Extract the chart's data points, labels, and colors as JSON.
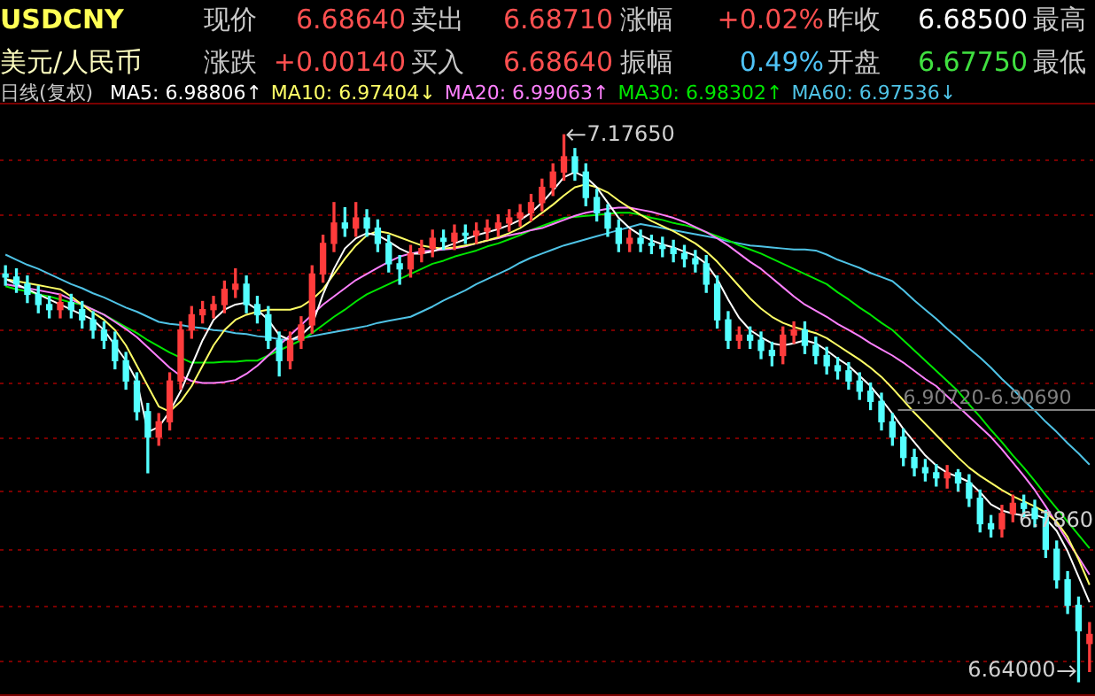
{
  "chart_data": {
    "type": "candlestick",
    "title": "USDCNY",
    "subtitle": "美元/人民币",
    "categories": [
      null,
      null,
      null,
      null,
      null,
      null,
      null,
      null,
      null,
      null,
      null,
      null,
      null,
      null,
      null,
      null,
      null,
      null,
      null,
      null,
      null,
      null,
      null,
      null,
      null,
      null,
      null,
      null,
      null,
      null,
      null,
      null,
      null,
      null,
      null,
      null,
      null,
      null,
      null,
      null,
      null,
      null,
      null,
      null,
      null,
      null,
      null,
      null,
      null,
      null,
      null,
      null,
      null,
      null,
      null,
      null,
      null,
      null,
      null,
      null,
      null,
      null,
      null,
      null,
      null,
      null,
      null,
      null,
      null,
      null,
      null,
      null,
      null,
      null,
      null,
      null,
      null,
      null,
      null,
      null,
      null,
      null,
      null,
      null,
      null,
      null,
      null,
      null,
      null,
      null,
      null,
      null,
      null,
      null,
      null,
      null,
      null,
      null,
      null,
      null
    ],
    "ohlc": [
      [
        7.04,
        7.048,
        7.029,
        7.037
      ],
      [
        7.037,
        7.045,
        7.022,
        7.03
      ],
      [
        7.03,
        7.038,
        7.012,
        7.02
      ],
      [
        7.02,
        7.028,
        7.002,
        7.01
      ],
      [
        7.01,
        7.018,
        6.997,
        7.005
      ],
      [
        7.005,
        7.02,
        6.997,
        7.012
      ],
      [
        7.012,
        7.02,
        6.997,
        7.005
      ],
      [
        7.005,
        7.013,
        6.987,
        6.995
      ],
      [
        6.995,
        7.003,
        6.977,
        6.985
      ],
      [
        6.985,
        6.993,
        6.967,
        6.975
      ],
      [
        6.975,
        6.983,
        6.947,
        6.955
      ],
      [
        6.955,
        6.963,
        6.927,
        6.935
      ],
      [
        6.935,
        6.943,
        6.897,
        6.905
      ],
      [
        6.905,
        6.913,
        6.845,
        6.88
      ],
      [
        6.88,
        6.903,
        6.872,
        6.895
      ],
      [
        6.895,
        6.943,
        6.887,
        6.935
      ],
      [
        6.935,
        6.993,
        6.927,
        6.985
      ],
      [
        6.985,
        7.008,
        6.977,
        7.0
      ],
      [
        7.0,
        7.013,
        6.992,
        7.005
      ],
      [
        7.005,
        7.018,
        6.997,
        7.01
      ],
      [
        7.01,
        7.033,
        7.002,
        7.025
      ],
      [
        7.025,
        7.045,
        7.017,
        7.03
      ],
      [
        7.03,
        7.038,
        7.002,
        7.01
      ],
      [
        7.01,
        7.018,
        6.992,
        7.0
      ],
      [
        7.0,
        7.008,
        6.967,
        6.975
      ],
      [
        6.975,
        6.983,
        6.94,
        6.955
      ],
      [
        6.955,
        6.983,
        6.947,
        6.975
      ],
      [
        6.975,
        6.998,
        6.967,
        6.99
      ],
      [
        6.99,
        7.048,
        6.982,
        7.04
      ],
      [
        7.04,
        7.078,
        7.032,
        7.07
      ],
      [
        7.07,
        7.11,
        7.062,
        7.09
      ],
      [
        7.09,
        7.105,
        7.077,
        7.085
      ],
      [
        7.085,
        7.11,
        7.077,
        7.095
      ],
      [
        7.095,
        7.103,
        7.077,
        7.085
      ],
      [
        7.085,
        7.093,
        7.062,
        7.07
      ],
      [
        7.07,
        7.078,
        7.042,
        7.05
      ],
      [
        7.05,
        7.058,
        7.03,
        7.045
      ],
      [
        7.045,
        7.068,
        7.037,
        7.06
      ],
      [
        7.06,
        7.073,
        7.052,
        7.065
      ],
      [
        7.065,
        7.083,
        7.057,
        7.075
      ],
      [
        7.075,
        7.083,
        7.064,
        7.072
      ],
      [
        7.072,
        7.088,
        7.064,
        7.08
      ],
      [
        7.08,
        7.088,
        7.07,
        7.078
      ],
      [
        7.078,
        7.09,
        7.07,
        7.082
      ],
      [
        7.082,
        7.093,
        7.074,
        7.085
      ],
      [
        7.085,
        7.098,
        7.077,
        7.09
      ],
      [
        7.09,
        7.103,
        7.082,
        7.095
      ],
      [
        7.095,
        7.108,
        7.087,
        7.1
      ],
      [
        7.1,
        7.118,
        7.092,
        7.11
      ],
      [
        7.11,
        7.133,
        7.102,
        7.125
      ],
      [
        7.125,
        7.148,
        7.117,
        7.14
      ],
      [
        7.14,
        7.1765,
        7.132,
        7.155
      ],
      [
        7.155,
        7.163,
        7.132,
        7.14
      ],
      [
        7.14,
        7.148,
        7.107,
        7.115
      ],
      [
        7.115,
        7.123,
        7.092,
        7.1
      ],
      [
        7.1,
        7.108,
        7.077,
        7.085
      ],
      [
        7.085,
        7.093,
        7.062,
        7.07
      ],
      [
        7.07,
        7.083,
        7.062,
        7.075
      ],
      [
        7.075,
        7.083,
        7.062,
        7.07
      ],
      [
        7.07,
        7.078,
        7.06,
        7.068
      ],
      [
        7.068,
        7.076,
        7.057,
        7.065
      ],
      [
        7.065,
        7.073,
        7.052,
        7.06
      ],
      [
        7.06,
        7.068,
        7.047,
        7.055
      ],
      [
        7.055,
        7.063,
        7.042,
        7.05
      ],
      [
        7.05,
        7.058,
        7.022,
        7.03
      ],
      [
        7.03,
        7.038,
        6.987,
        6.995
      ],
      [
        6.995,
        7.003,
        6.967,
        6.975
      ],
      [
        6.975,
        6.988,
        6.967,
        6.98
      ],
      [
        6.98,
        6.988,
        6.967,
        6.975
      ],
      [
        6.975,
        6.983,
        6.957,
        6.965
      ],
      [
        6.965,
        6.973,
        6.95,
        6.96
      ],
      [
        6.96,
        6.988,
        6.952,
        6.98
      ],
      [
        6.98,
        6.993,
        6.972,
        6.985
      ],
      [
        6.985,
        6.993,
        6.962,
        6.97
      ],
      [
        6.97,
        6.978,
        6.952,
        6.96
      ],
      [
        6.96,
        6.968,
        6.942,
        6.95
      ],
      [
        6.95,
        6.958,
        6.937,
        6.945
      ],
      [
        6.945,
        6.953,
        6.927,
        6.935
      ],
      [
        6.935,
        6.943,
        6.917,
        6.925
      ],
      [
        6.925,
        6.933,
        6.907,
        6.915
      ],
      [
        6.915,
        6.923,
        6.887,
        6.895
      ],
      [
        6.895,
        6.903,
        6.872,
        6.88
      ],
      [
        6.88,
        6.888,
        6.852,
        6.86
      ],
      [
        6.86,
        6.868,
        6.842,
        6.85
      ],
      [
        6.85,
        6.858,
        6.837,
        6.845
      ],
      [
        6.845,
        6.853,
        6.832,
        6.84
      ],
      [
        6.84,
        6.852,
        6.83,
        6.845
      ],
      [
        6.845,
        6.848,
        6.827,
        6.835
      ],
      [
        6.835,
        6.843,
        6.812,
        6.82
      ],
      [
        6.82,
        6.828,
        6.787,
        6.795
      ],
      [
        6.795,
        6.803,
        6.782,
        6.79
      ],
      [
        6.79,
        6.813,
        6.782,
        6.805
      ],
      [
        6.805,
        6.823,
        6.797,
        6.815
      ],
      [
        6.815,
        6.823,
        6.802,
        6.81
      ],
      [
        6.81,
        6.818,
        6.792,
        6.8
      ],
      [
        6.8,
        6.808,
        6.762,
        6.77
      ],
      [
        6.77,
        6.778,
        6.732,
        6.74
      ],
      [
        6.74,
        6.748,
        6.707,
        6.715
      ],
      [
        6.715,
        6.723,
        6.64,
        6.69
      ],
      [
        6.6775,
        6.698,
        6.65,
        6.6864
      ]
    ],
    "series": [
      {
        "type": "line",
        "name": "MA5: 6.98806↑",
        "color": "#ffffff",
        "values": [
          7.035,
          7.03,
          7.025,
          7.02,
          7.015,
          7.01,
          7.005,
          7.0,
          6.995,
          6.985,
          6.97,
          6.955,
          6.935,
          6.885,
          6.89,
          6.905,
          6.925,
          6.95,
          6.975,
          6.995,
          7.005,
          7.01,
          7.012,
          7.005,
          6.995,
          6.98,
          6.975,
          6.98,
          6.99,
          7.02,
          7.045,
          7.065,
          7.075,
          7.08,
          7.078,
          7.072,
          7.065,
          7.06,
          7.06,
          7.062,
          7.066,
          7.07,
          7.074,
          7.078,
          7.081,
          7.084,
          7.088,
          7.093,
          7.1,
          7.11,
          7.122,
          7.135,
          7.14,
          7.135,
          7.125,
          7.11,
          7.095,
          7.085,
          7.078,
          7.073,
          7.069,
          7.066,
          7.062,
          7.058,
          7.05,
          7.035,
          7.015,
          6.997,
          6.985,
          6.978,
          6.972,
          6.97,
          6.972,
          6.975,
          6.972,
          6.965,
          6.957,
          6.95,
          6.94,
          6.93,
          6.917,
          6.903,
          6.888,
          6.875,
          6.862,
          6.852,
          6.845,
          6.841,
          6.836,
          6.826,
          6.814,
          6.808,
          6.805,
          6.803,
          6.804,
          6.8,
          6.788,
          6.768,
          6.743,
          6.718
        ]
      },
      {
        "type": "line",
        "name": "MA10: 6.97404↓",
        "color": "#ffff66",
        "values": [
          7.035,
          7.033,
          7.031,
          7.029,
          7.027,
          7.025,
          7.018,
          7.01,
          7.002,
          6.995,
          6.985,
          6.97,
          6.95,
          6.93,
          6.91,
          6.905,
          6.915,
          6.93,
          6.95,
          6.97,
          6.985,
          6.995,
          7.0,
          7.003,
          7.005,
          7.005,
          7.005,
          7.008,
          7.015,
          7.025,
          7.04,
          7.055,
          7.068,
          7.078,
          7.082,
          7.08,
          7.076,
          7.072,
          7.068,
          7.066,
          7.065,
          7.066,
          7.068,
          7.07,
          7.073,
          7.076,
          7.08,
          7.085,
          7.092,
          7.1,
          7.108,
          7.117,
          7.125,
          7.128,
          7.125,
          7.12,
          7.112,
          7.105,
          7.098,
          7.092,
          7.087,
          7.082,
          7.076,
          7.07,
          7.062,
          7.052,
          7.04,
          7.028,
          7.016,
          7.006,
          6.998,
          6.992,
          6.988,
          6.985,
          6.982,
          6.977,
          6.97,
          6.963,
          6.956,
          6.948,
          6.939,
          6.928,
          6.916,
          6.904,
          6.893,
          6.882,
          6.871,
          6.86,
          6.85,
          6.842,
          6.835,
          6.828,
          6.822,
          6.817,
          6.812,
          6.806,
          6.797,
          6.782,
          6.76,
          6.735
        ]
      },
      {
        "type": "line",
        "name": "MA20: 6.99063↑",
        "color": "#ff80ff",
        "values": [
          7.03,
          7.028,
          7.026,
          7.024,
          7.022,
          7.02,
          7.015,
          7.01,
          7.005,
          7.0,
          6.993,
          6.986,
          6.978,
          6.968,
          6.958,
          6.948,
          6.94,
          6.935,
          6.933,
          6.933,
          6.934,
          6.936,
          6.942,
          6.95,
          6.96,
          6.97,
          6.98,
          6.99,
          7.0,
          7.01,
          7.018,
          7.026,
          7.034,
          7.04,
          7.046,
          7.052,
          7.057,
          7.06,
          7.062,
          7.063,
          7.064,
          7.065,
          7.067,
          7.07,
          7.073,
          7.075,
          7.078,
          7.08,
          7.083,
          7.085,
          7.089,
          7.093,
          7.097,
          7.1,
          7.102,
          7.104,
          7.105,
          7.105,
          7.103,
          7.101,
          7.098,
          7.095,
          7.091,
          7.086,
          7.081,
          7.075,
          7.068,
          7.06,
          7.052,
          7.045,
          7.036,
          7.027,
          7.018,
          7.01,
          7.004,
          6.998,
          6.991,
          6.985,
          6.979,
          6.972,
          6.966,
          6.96,
          6.953,
          6.945,
          6.937,
          6.93,
          6.92,
          6.91,
          6.9,
          6.89,
          6.88,
          6.868,
          6.855,
          6.842,
          6.828,
          6.812,
          6.795,
          6.778,
          6.762,
          6.745
        ]
      },
      {
        "type": "line",
        "name": "MA30: 6.98302↑",
        "color": "#00e600",
        "values": [
          7.028,
          7.025,
          7.023,
          7.02,
          7.018,
          7.015,
          7.012,
          7.01,
          7.005,
          7.0,
          6.994,
          6.988,
          6.982,
          6.975,
          6.969,
          6.963,
          6.958,
          6.953,
          6.953,
          6.953,
          6.954,
          6.954,
          6.955,
          6.955,
          6.96,
          6.965,
          6.97,
          6.975,
          6.982,
          6.99,
          6.998,
          7.005,
          7.013,
          7.02,
          7.025,
          7.03,
          7.035,
          7.04,
          7.045,
          7.05,
          7.053,
          7.057,
          7.06,
          7.063,
          7.067,
          7.07,
          7.074,
          7.078,
          7.083,
          7.087,
          7.091,
          7.095,
          7.096,
          7.097,
          7.098,
          7.099,
          7.1,
          7.1,
          7.098,
          7.095,
          7.093,
          7.09,
          7.088,
          7.085,
          7.081,
          7.077,
          7.073,
          7.068,
          7.064,
          7.06,
          7.055,
          7.05,
          7.045,
          7.04,
          7.035,
          7.03,
          7.022,
          7.015,
          7.007,
          7.0,
          6.992,
          6.985,
          6.975,
          6.965,
          6.955,
          6.945,
          6.935,
          6.925,
          6.912,
          6.9,
          6.887,
          6.875,
          6.862,
          6.85,
          6.837,
          6.823,
          6.81,
          6.797,
          6.784,
          6.771
        ]
      },
      {
        "type": "line",
        "name": "MA60: 6.97536↓",
        "color": "#4fc3e6",
        "values": [
          7.059,
          7.054,
          7.049,
          7.045,
          7.04,
          7.035,
          7.03,
          7.026,
          7.021,
          7.017,
          7.012,
          7.007,
          7.003,
          6.998,
          6.993,
          6.991,
          6.99,
          6.988,
          6.987,
          6.985,
          6.984,
          6.982,
          6.981,
          6.979,
          6.978,
          6.976,
          6.975,
          6.977,
          6.979,
          6.981,
          6.983,
          6.985,
          6.987,
          6.989,
          6.992,
          6.994,
          6.996,
          6.998,
          7.003,
          7.008,
          7.014,
          7.019,
          7.024,
          7.03,
          7.035,
          7.04,
          7.045,
          7.051,
          7.056,
          7.06,
          7.064,
          7.068,
          7.071,
          7.074,
          7.077,
          7.08,
          7.083,
          7.086,
          7.089,
          7.087,
          7.085,
          7.083,
          7.081,
          7.079,
          7.077,
          7.075,
          7.072,
          7.07,
          7.068,
          7.067,
          7.066,
          7.065,
          7.064,
          7.064,
          7.063,
          7.059,
          7.054,
          7.05,
          7.046,
          7.041,
          7.037,
          7.033,
          7.024,
          7.014,
          7.005,
          6.996,
          6.986,
          6.977,
          6.967,
          6.958,
          6.948,
          6.937,
          6.927,
          6.916,
          6.906,
          6.895,
          6.885,
          6.874,
          6.864,
          6.853
        ]
      }
    ],
    "ylim": [
      6.626,
      7.208
    ],
    "yticks": [
      {
        "value": 7.152,
        "label": null
      },
      {
        "value": 7.098,
        "label": null
      },
      {
        "value": 7.042,
        "label": null
      },
      {
        "value": 6.986,
        "label": null
      },
      {
        "value": 6.934,
        "label": null
      },
      {
        "value": 6.879,
        "label": null
      },
      {
        "value": 6.827,
        "label": null
      },
      {
        "value": 6.771,
        "label": null
      },
      {
        "value": 6.715,
        "label": null
      },
      {
        "value": 6.661,
        "label": null
      }
    ],
    "grid": "y",
    "ref_lines": [
      {
        "axis": "y",
        "value": 6.9072,
        "label": "6.90720-6.90690",
        "color": "#808080"
      }
    ],
    "annotations": [
      "现价",
      "6.68640",
      "卖出",
      "6.68710",
      "涨幅",
      "+0.02%",
      "昨收",
      "6.68500",
      "最高",
      "涨跌",
      "+0.00140",
      "买入",
      "6.68640",
      "振幅",
      "0.49%",
      "开盘",
      "6.67750",
      "最低",
      "日线(复权)",
      "7.17650",
      "6.7860",
      "6.64000"
    ]
  }
}
